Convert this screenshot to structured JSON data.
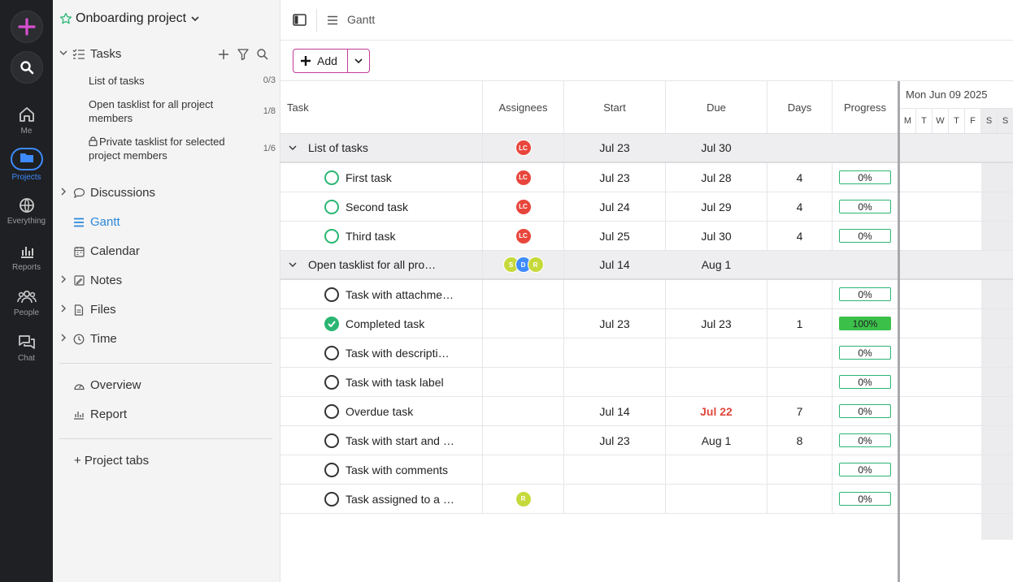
{
  "rail": {
    "items": [
      {
        "label": "Me"
      },
      {
        "label": "Projects"
      },
      {
        "label": "Everything"
      },
      {
        "label": "Reports"
      },
      {
        "label": "People"
      },
      {
        "label": "Chat"
      }
    ]
  },
  "sidebar": {
    "project_title": "Onboarding project",
    "tasks_label": "Tasks",
    "tasklists": [
      {
        "label": "List of tasks",
        "count": "0/3"
      },
      {
        "label": "Open tasklist for all project members",
        "count": "1/8"
      },
      {
        "label": "Private tasklist for selected project members",
        "count": "1/6"
      }
    ],
    "nav": [
      {
        "label": "Discussions"
      },
      {
        "label": "Gantt"
      },
      {
        "label": "Calendar"
      },
      {
        "label": "Notes"
      },
      {
        "label": "Files"
      },
      {
        "label": "Time"
      }
    ],
    "extra": [
      {
        "label": "Overview"
      },
      {
        "label": "Report"
      }
    ],
    "project_tabs": "+ Project tabs"
  },
  "topbar": {
    "view_label": "Gantt"
  },
  "toolbar": {
    "add_label": "Add"
  },
  "columns": {
    "task": "Task",
    "assignees": "Assignees",
    "start": "Start",
    "due": "Due",
    "days": "Days",
    "progress": "Progress"
  },
  "groups": [
    {
      "name": "List of tasks",
      "start": "Jul 23",
      "due": "Jul 30",
      "assignees": [
        {
          "initials": "LC",
          "color": "#e8463c"
        }
      ],
      "tasks": [
        {
          "name": "First task",
          "start": "Jul 23",
          "due": "Jul 28",
          "days": "4",
          "progress": "0%",
          "assignee": "LC"
        },
        {
          "name": "Second task",
          "start": "Jul 24",
          "due": "Jul 29",
          "days": "4",
          "progress": "0%",
          "assignee": "LC"
        },
        {
          "name": "Third task",
          "start": "Jul 25",
          "due": "Jul 30",
          "days": "4",
          "progress": "0%",
          "assignee": "LC"
        }
      ]
    },
    {
      "name": "Open tasklist for all pro…",
      "start": "Jul 14",
      "due": "Aug 1",
      "assignees": [
        {
          "initials": "S",
          "color": "#c6d93b"
        },
        {
          "initials": "D",
          "color": "#3d8bfd"
        },
        {
          "initials": "R",
          "color": "#c6d93b"
        }
      ],
      "tasks": [
        {
          "name": "Task with attachme…",
          "start": "",
          "due": "",
          "days": "",
          "progress": "0%",
          "assignee": ""
        },
        {
          "name": "Completed task",
          "start": "Jul 23",
          "due": "Jul 23",
          "days": "1",
          "progress": "100%",
          "assignee": ""
        },
        {
          "name": "Task with descripti…",
          "start": "",
          "due": "",
          "days": "",
          "progress": "0%",
          "assignee": ""
        },
        {
          "name": "Task with task label",
          "start": "",
          "due": "",
          "days": "",
          "progress": "0%",
          "assignee": ""
        },
        {
          "name": "Overdue task",
          "start": "Jul 14",
          "due": "Jul 22",
          "days": "7",
          "progress": "0%",
          "assignee": ""
        },
        {
          "name": "Task with start and …",
          "start": "Jul 23",
          "due": "Aug 1",
          "days": "8",
          "progress": "0%",
          "assignee": ""
        },
        {
          "name": "Task with comments",
          "start": "",
          "due": "",
          "days": "",
          "progress": "0%",
          "assignee": ""
        },
        {
          "name": "Task assigned to a …",
          "start": "",
          "due": "",
          "days": "",
          "progress": "0%",
          "assignee": "R"
        }
      ]
    }
  ],
  "calendar": {
    "month_label": "Mon Jun 09 2025",
    "days": [
      "M",
      "T",
      "W",
      "T",
      "F",
      "S",
      "S"
    ]
  },
  "colors": {
    "accent": "#2b87d8",
    "add_border": "#c33b9a",
    "progress_green": "#3bc14a",
    "overdue": "#e0493c"
  }
}
